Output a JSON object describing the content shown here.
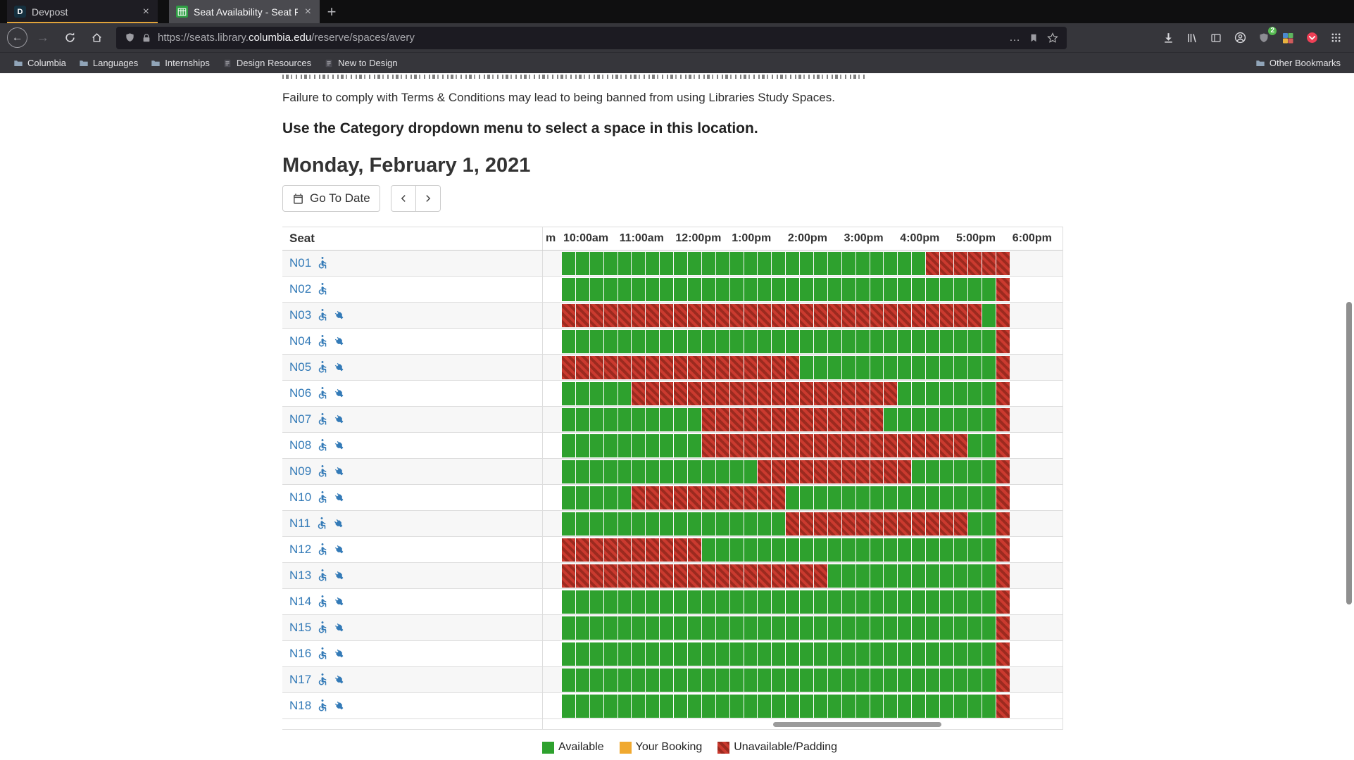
{
  "browser": {
    "tabs": [
      {
        "title": "Devpost",
        "favicon_letter": "D",
        "close_label": "×"
      },
      {
        "title": "Seat Availability - Seat Reserva",
        "close_label": "×"
      }
    ],
    "new_tab_button": "+",
    "nav": {
      "back_glyph": "←",
      "forward_glyph": "→",
      "ellipsis": "…"
    },
    "url": {
      "prefix": "https://seats.library.",
      "domain": "columbia.edu",
      "path": "/reserve/spaces/avery"
    },
    "extension_badge": "2",
    "bookmarks": {
      "items": [
        {
          "label": "Columbia",
          "icon": "folder"
        },
        {
          "label": "Languages",
          "icon": "folder"
        },
        {
          "label": "Internships",
          "icon": "folder"
        },
        {
          "label": "Design Resources",
          "icon": "page"
        },
        {
          "label": "New to Design",
          "icon": "page"
        }
      ],
      "other_label": "Other Bookmarks"
    }
  },
  "page": {
    "terms_text": "Failure to comply with Terms & Conditions may lead to being banned from using Libraries Study Spaces.",
    "lead": {
      "prefix": "Use the ",
      "bold": "Category",
      "suffix": " dropdown menu to select a space in this location."
    },
    "date_heading": "Monday, February 1, 2021",
    "controls": {
      "go_to_date": "Go To Date"
    },
    "table": {
      "seat_header": "Seat",
      "partial_hour_label": "m",
      "hours": [
        "10:00am",
        "11:00am",
        "12:00pm",
        "1:00pm",
        "2:00pm",
        "3:00pm",
        "4:00pm",
        "5:00pm",
        "6:00pm"
      ],
      "minutes_per_slot": 15,
      "rows": [
        {
          "seat": "N01",
          "icons": [
            "accessible"
          ],
          "segments": [
            [
              "available",
              26
            ],
            [
              "unavailable",
              6
            ]
          ]
        },
        {
          "seat": "N02",
          "icons": [
            "accessible"
          ],
          "segments": [
            [
              "available",
              31
            ],
            [
              "unavailable",
              1
            ]
          ]
        },
        {
          "seat": "N03",
          "icons": [
            "accessible",
            "power"
          ],
          "segments": [
            [
              "unavailable",
              30
            ],
            [
              "available",
              1
            ],
            [
              "unavailable",
              1
            ]
          ]
        },
        {
          "seat": "N04",
          "icons": [
            "accessible",
            "power"
          ],
          "segments": [
            [
              "available",
              31
            ],
            [
              "unavailable",
              1
            ]
          ]
        },
        {
          "seat": "N05",
          "icons": [
            "accessible",
            "power"
          ],
          "segments": [
            [
              "unavailable",
              17
            ],
            [
              "available",
              14
            ],
            [
              "unavailable",
              1
            ]
          ]
        },
        {
          "seat": "N06",
          "icons": [
            "accessible",
            "power"
          ],
          "segments": [
            [
              "available",
              5
            ],
            [
              "unavailable",
              19
            ],
            [
              "available",
              7
            ],
            [
              "unavailable",
              1
            ]
          ]
        },
        {
          "seat": "N07",
          "icons": [
            "accessible",
            "power"
          ],
          "segments": [
            [
              "available",
              10
            ],
            [
              "unavailable",
              13
            ],
            [
              "available",
              8
            ],
            [
              "unavailable",
              1
            ]
          ]
        },
        {
          "seat": "N08",
          "icons": [
            "accessible",
            "power"
          ],
          "segments": [
            [
              "available",
              10
            ],
            [
              "unavailable",
              19
            ],
            [
              "available",
              2
            ],
            [
              "unavailable",
              1
            ]
          ]
        },
        {
          "seat": "N09",
          "icons": [
            "accessible",
            "power"
          ],
          "segments": [
            [
              "available",
              14
            ],
            [
              "unavailable",
              11
            ],
            [
              "available",
              6
            ],
            [
              "unavailable",
              1
            ]
          ]
        },
        {
          "seat": "N10",
          "icons": [
            "accessible",
            "power"
          ],
          "segments": [
            [
              "available",
              5
            ],
            [
              "unavailable",
              11
            ],
            [
              "available",
              15
            ],
            [
              "unavailable",
              1
            ]
          ]
        },
        {
          "seat": "N11",
          "icons": [
            "accessible",
            "power"
          ],
          "segments": [
            [
              "available",
              16
            ],
            [
              "unavailable",
              13
            ],
            [
              "available",
              2
            ],
            [
              "unavailable",
              1
            ]
          ]
        },
        {
          "seat": "N12",
          "icons": [
            "accessible",
            "power"
          ],
          "segments": [
            [
              "unavailable",
              10
            ],
            [
              "available",
              21
            ],
            [
              "unavailable",
              1
            ]
          ]
        },
        {
          "seat": "N13",
          "icons": [
            "accessible",
            "power"
          ],
          "segments": [
            [
              "unavailable",
              19
            ],
            [
              "available",
              12
            ],
            [
              "unavailable",
              1
            ]
          ]
        },
        {
          "seat": "N14",
          "icons": [
            "accessible",
            "power"
          ],
          "segments": [
            [
              "available",
              31
            ],
            [
              "unavailable",
              1
            ]
          ]
        },
        {
          "seat": "N15",
          "icons": [
            "accessible",
            "power"
          ],
          "segments": [
            [
              "available",
              31
            ],
            [
              "unavailable",
              1
            ]
          ]
        },
        {
          "seat": "N16",
          "icons": [
            "accessible",
            "power"
          ],
          "segments": [
            [
              "available",
              31
            ],
            [
              "unavailable",
              1
            ]
          ]
        },
        {
          "seat": "N17",
          "icons": [
            "accessible",
            "power"
          ],
          "segments": [
            [
              "available",
              31
            ],
            [
              "unavailable",
              1
            ]
          ]
        },
        {
          "seat": "N18",
          "icons": [
            "accessible",
            "power"
          ],
          "segments": [
            [
              "available",
              31
            ],
            [
              "unavailable",
              1
            ]
          ]
        }
      ]
    },
    "legend": [
      {
        "label": "Available",
        "type": "available"
      },
      {
        "label": "Your Booking",
        "type": "booking"
      },
      {
        "label": "Unavailable/Padding",
        "type": "unavailable"
      }
    ],
    "colors": {
      "available": "#2ea12e",
      "booking": "#f0a930",
      "unavailable": "#cb3a2f",
      "unavailable_dark": "#9c2a1f",
      "link": "#337ab7"
    }
  }
}
